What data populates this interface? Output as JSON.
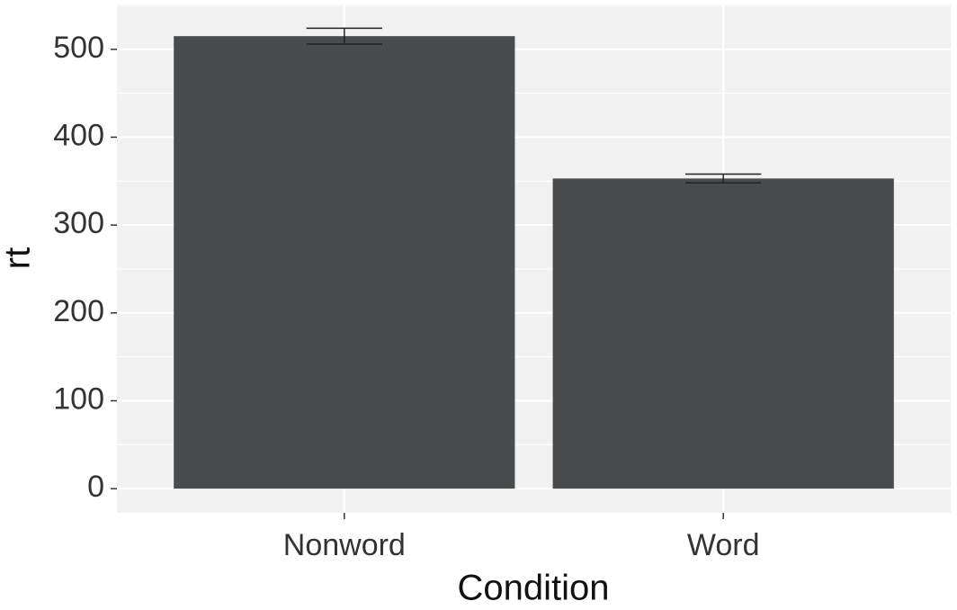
{
  "chart_data": {
    "type": "bar",
    "categories": [
      "Nonword",
      "Word"
    ],
    "values": [
      515,
      353
    ],
    "errors": [
      9,
      5
    ],
    "color": "#4a4b4d",
    "xlabel": "Condition",
    "ylabel": "rt",
    "ylim": [
      -27.5,
      551
    ],
    "yticks": [
      0,
      100,
      200,
      300,
      400,
      500
    ],
    "grid": true
  }
}
